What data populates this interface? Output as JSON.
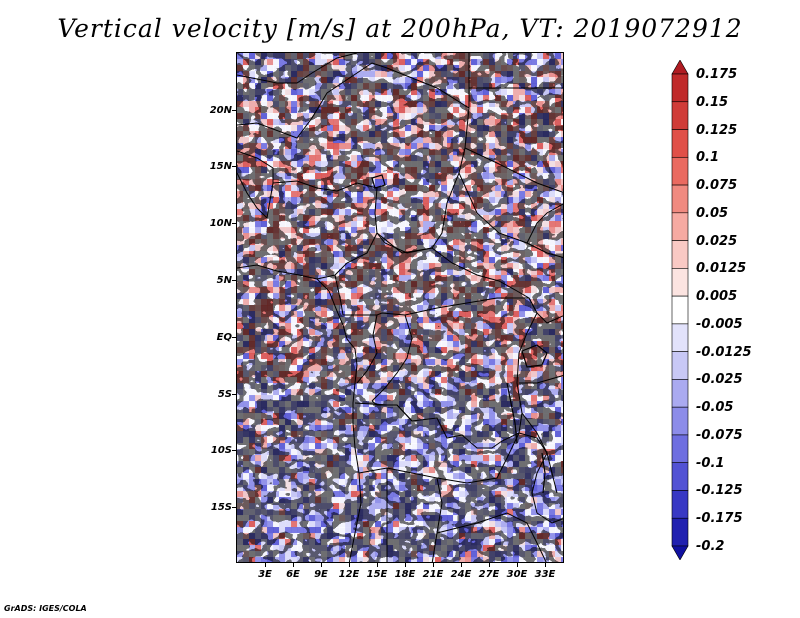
{
  "title": "Vertical velocity [m/s] at 200hPa, VT: 2019072912",
  "footer": "GrADS: IGES/COLA",
  "map": {
    "projection": "latlon",
    "lon_range": [
      0,
      35
    ],
    "lat_range": [
      -20,
      25
    ],
    "lat_tick_labels": [
      "20N",
      "15N",
      "10N",
      "5N",
      "EQ",
      "5S",
      "10S",
      "15S"
    ],
    "lon_tick_labels": [
      "3E",
      "6E",
      "9E",
      "12E",
      "15E",
      "18E",
      "21E",
      "24E",
      "27E",
      "30E",
      "33E"
    ],
    "field": "vertical velocity",
    "units": "m/s",
    "level": "200hPa",
    "valid_time": "2019072912"
  },
  "colorbar": {
    "labels": [
      "0.175",
      "0.15",
      "0.125",
      "0.1",
      "0.075",
      "0.05",
      "0.025",
      "0.0125",
      "0.005",
      "-0.005",
      "-0.0125",
      "-0.025",
      "-0.05",
      "-0.075",
      "-0.1",
      "-0.125",
      "-0.175",
      "-0.2"
    ],
    "colors": [
      "#b01c22",
      "#c02a2a",
      "#d03c38",
      "#e05048",
      "#ea6a60",
      "#f08a80",
      "#f6aaa2",
      "#f9c9c4",
      "#fce4e1",
      "#ffffff",
      "#e2e2fb",
      "#c8c8f6",
      "#aaaaf0",
      "#8c8ce9",
      "#6e6ee0",
      "#5252d4",
      "#3838c4",
      "#2020b0",
      "#1010a0"
    ]
  }
}
